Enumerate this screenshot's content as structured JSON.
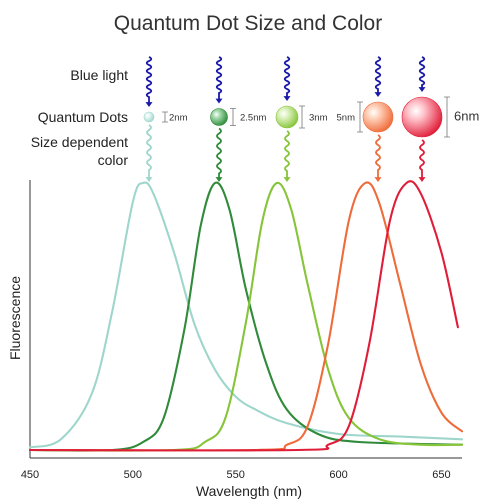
{
  "title": "Quantum Dot Size and Color",
  "row_labels": {
    "light": "Blue light",
    "dots": "Quantum Dots",
    "color_line1": "Size dependent",
    "color_line2": "color"
  },
  "light_color": "#1a1aa8",
  "dots": [
    {
      "size": "2nm",
      "color": "#9fd6cc",
      "light": "#e8f7f4"
    },
    {
      "size": "2.5nm",
      "color": "#2f8a3a",
      "light": "#a6dcae"
    },
    {
      "size": "3nm",
      "color": "#86c43a",
      "light": "#def2bf"
    },
    {
      "size": "5nm",
      "color": "#ef6b3a",
      "light": "#ffd2bb"
    },
    {
      "size": "6nm",
      "color": "#e01d38",
      "light": "#ffc3cb"
    }
  ],
  "chart_data": {
    "type": "line",
    "xlabel": "Wavelength (nm)",
    "ylabel": "Fluorescence",
    "xlim": [
      450,
      660
    ],
    "ylim": [
      0,
      1
    ],
    "x_ticks": [
      450,
      500,
      550,
      600,
      650
    ],
    "series": [
      {
        "peak": 505,
        "color": "#9fd6cc",
        "points": [
          [
            450,
            0.01
          ],
          [
            465,
            0.04
          ],
          [
            480,
            0.21
          ],
          [
            490,
            0.52
          ],
          [
            500,
            0.93
          ],
          [
            505,
            1.0
          ],
          [
            510,
            0.96
          ],
          [
            520,
            0.74
          ],
          [
            530,
            0.47
          ],
          [
            540,
            0.3
          ],
          [
            550,
            0.2
          ],
          [
            560,
            0.15
          ],
          [
            575,
            0.1
          ],
          [
            600,
            0.06
          ],
          [
            630,
            0.05
          ],
          [
            660,
            0.04
          ]
        ]
      },
      {
        "peak": 540,
        "color": "#2f8a3a",
        "points": [
          [
            450,
            0.0
          ],
          [
            490,
            0.0
          ],
          [
            505,
            0.03
          ],
          [
            515,
            0.12
          ],
          [
            525,
            0.45
          ],
          [
            533,
            0.84
          ],
          [
            540,
            1.0
          ],
          [
            547,
            0.9
          ],
          [
            555,
            0.6
          ],
          [
            565,
            0.32
          ],
          [
            575,
            0.15
          ],
          [
            590,
            0.06
          ],
          [
            610,
            0.03
          ],
          [
            660,
            0.02
          ]
        ]
      },
      {
        "peak": 570,
        "color": "#86c43a",
        "points": [
          [
            450,
            0.0
          ],
          [
            520,
            0.0
          ],
          [
            535,
            0.03
          ],
          [
            545,
            0.12
          ],
          [
            555,
            0.48
          ],
          [
            563,
            0.86
          ],
          [
            570,
            1.0
          ],
          [
            577,
            0.9
          ],
          [
            585,
            0.62
          ],
          [
            595,
            0.3
          ],
          [
            605,
            0.12
          ],
          [
            620,
            0.04
          ],
          [
            640,
            0.02
          ],
          [
            660,
            0.02
          ]
        ]
      },
      {
        "peak": 613,
        "color": "#ef6b3a",
        "points": [
          [
            450,
            0.0
          ],
          [
            560,
            0.0
          ],
          [
            575,
            0.02
          ],
          [
            585,
            0.09
          ],
          [
            595,
            0.4
          ],
          [
            605,
            0.86
          ],
          [
            613,
            1.0
          ],
          [
            620,
            0.92
          ],
          [
            630,
            0.62
          ],
          [
            640,
            0.32
          ],
          [
            650,
            0.14
          ],
          [
            660,
            0.07
          ]
        ]
      },
      {
        "peak": 633,
        "color": "#e01d38",
        "points": [
          [
            450,
            0.0
          ],
          [
            580,
            0.0
          ],
          [
            595,
            0.02
          ],
          [
            605,
            0.09
          ],
          [
            615,
            0.4
          ],
          [
            625,
            0.86
          ],
          [
            633,
            1.0
          ],
          [
            640,
            0.96
          ],
          [
            650,
            0.74
          ],
          [
            658,
            0.46
          ]
        ]
      }
    ]
  }
}
